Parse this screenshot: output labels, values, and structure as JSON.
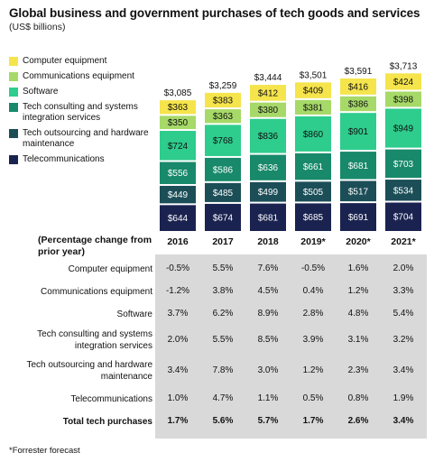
{
  "title": "Global business and government purchases of tech goods and services",
  "subtitle": "(US$ billions)",
  "colors": {
    "computer_equipment": "#f5e44c",
    "communications_equipment": "#a6d968",
    "software": "#2ecc8d",
    "tech_consulting": "#18896a",
    "tech_outsourcing": "#1c4e58",
    "telecommunications": "#1a2350"
  },
  "chart_data": {
    "type": "bar",
    "stacked": true,
    "categories": [
      "2016",
      "2017",
      "2018",
      "2019*",
      "2020*",
      "2021*"
    ],
    "totals": [
      "$3,085",
      "$3,259",
      "$3,444",
      "$3,501",
      "$3,591",
      "$3,713"
    ],
    "series": [
      {
        "name": "Telecommunications",
        "key": "telecommunications",
        "values": [
          644,
          674,
          681,
          685,
          691,
          704
        ]
      },
      {
        "name": "Tech outsourcing and hardware maintenance",
        "key": "tech_outsourcing",
        "values": [
          449,
          485,
          499,
          505,
          517,
          534
        ]
      },
      {
        "name": "Tech consulting and systems integration services",
        "key": "tech_consulting",
        "values": [
          556,
          586,
          636,
          661,
          681,
          703
        ]
      },
      {
        "name": "Software",
        "key": "software",
        "values": [
          724,
          768,
          836,
          860,
          901,
          949
        ]
      },
      {
        "name": "Communications equipment",
        "key": "communications_equipment",
        "values": [
          350,
          363,
          380,
          381,
          386,
          398
        ]
      },
      {
        "name": "Computer equipment",
        "key": "computer_equipment",
        "values": [
          363,
          383,
          412,
          409,
          416,
          424
        ]
      }
    ]
  },
  "legend": [
    {
      "label": "Computer equipment",
      "key": "computer_equipment"
    },
    {
      "label": "Communications equipment",
      "key": "communications_equipment"
    },
    {
      "label": "Software",
      "key": "software"
    },
    {
      "label": "Tech consulting and systems integration services",
      "key": "tech_consulting"
    },
    {
      "label": "Tech outsourcing and hardware maintenance",
      "key": "tech_outsourcing"
    },
    {
      "label": "Telecommunications",
      "key": "telecommunications"
    }
  ],
  "table": {
    "header_label": "(Percentage change from prior year)",
    "rows": [
      {
        "label": "Computer equipment",
        "values": [
          "-0.5%",
          "5.5%",
          "7.6%",
          "-0.5%",
          "1.6%",
          "2.0%"
        ]
      },
      {
        "label": "Communications equipment",
        "values": [
          "-1.2%",
          "3.8%",
          "4.5%",
          "0.4%",
          "1.2%",
          "3.3%"
        ]
      },
      {
        "label": "Software",
        "values": [
          "3.7%",
          "6.2%",
          "8.9%",
          "2.8%",
          "4.8%",
          "5.4%"
        ]
      },
      {
        "label": "Tech consulting and systems integration services",
        "values": [
          "2.0%",
          "5.5%",
          "8.5%",
          "3.9%",
          "3.1%",
          "3.2%"
        ]
      },
      {
        "label": "Tech outsourcing and hardware maintenance",
        "values": [
          "3.4%",
          "7.8%",
          "3.0%",
          "1.2%",
          "2.3%",
          "3.4%"
        ]
      },
      {
        "label": "Telecommunications",
        "values": [
          "1.0%",
          "4.7%",
          "1.1%",
          "0.5%",
          "0.8%",
          "1.9%"
        ]
      },
      {
        "label": "Total tech purchases",
        "values": [
          "1.7%",
          "5.6%",
          "5.7%",
          "1.7%",
          "2.6%",
          "3.4%"
        ],
        "bold": true
      }
    ]
  },
  "footnote": "*Forrester forecast"
}
